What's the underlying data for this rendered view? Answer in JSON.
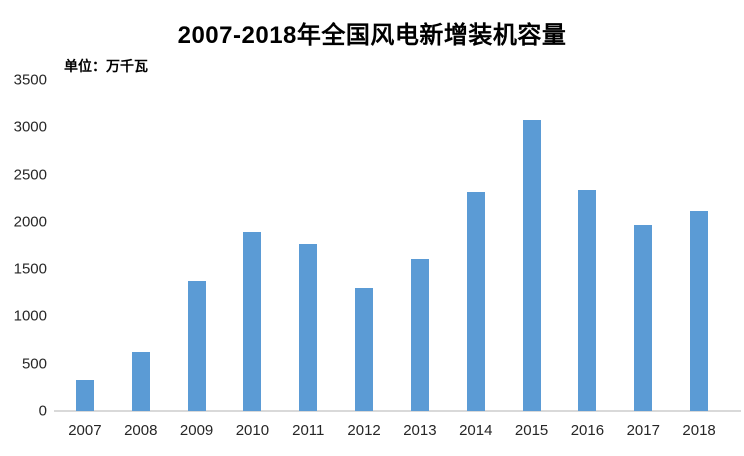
{
  "chart": {
    "title": "2007-2018年全国风电新增装机容量",
    "unit_label": "单位：万千瓦"
  },
  "chart_data": {
    "type": "bar",
    "title": "2007-2018年全国风电新增装机容量",
    "unit": "万千瓦",
    "categories": [
      "2007",
      "2008",
      "2009",
      "2010",
      "2011",
      "2012",
      "2013",
      "2014",
      "2015",
      "2016",
      "2017",
      "2018"
    ],
    "values": [
      330,
      625,
      1380,
      1893,
      1763,
      1296,
      1610,
      2320,
      3075,
      2337,
      1966,
      2114
    ],
    "xlabel": "",
    "ylabel": "单位：万千瓦",
    "ylim": [
      0,
      3500
    ],
    "ytick_step": 500,
    "yticks": [
      0,
      500,
      1000,
      1500,
      2000,
      2500,
      3000,
      3500
    ],
    "grid": false,
    "legend": false,
    "bar_color": "#5b9bd5",
    "axis_line_color": "#d9d9d9",
    "tick_label_color": "#262626",
    "title_color": "#000000",
    "background_color": "#ffffff"
  }
}
